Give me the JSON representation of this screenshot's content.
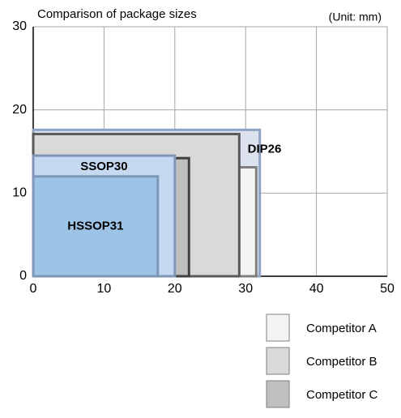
{
  "chart_data": {
    "type": "rectangle",
    "title": "Comparison of package sizes",
    "unit_note": "(Unit: mm)",
    "xlim": [
      0,
      50
    ],
    "xticks": [
      0,
      10,
      20,
      30,
      40,
      50
    ],
    "ylim": [
      0,
      30
    ],
    "yticks": [
      0,
      10,
      20,
      30
    ],
    "grid": true,
    "series": [
      {
        "name": "DIP26",
        "width": 32,
        "height": 17.6,
        "color": "#dde3ee",
        "stroke": "#8ea3c3",
        "label_position": "top-right"
      },
      {
        "name": "Competitor A",
        "width": 31.5,
        "height": 13.1,
        "color": "#f4f4f4",
        "stroke": "#7f7f7f",
        "label_position": "legend"
      },
      {
        "name": "Competitor B",
        "width": 29.1,
        "height": 17.1,
        "color": "#d9d9d9",
        "stroke": "#595959",
        "label_position": "legend"
      },
      {
        "name": "Competitor C",
        "width": 22,
        "height": 14.2,
        "color": "#bfbfbf",
        "stroke": "#404040",
        "label_position": "legend"
      },
      {
        "name": "SSOP30",
        "width": 20,
        "height": 14.5,
        "color": "#c5d9f1",
        "stroke": "#7f96b8",
        "label_position": "top"
      },
      {
        "name": "HSSOP31",
        "width": 17.6,
        "height": 12,
        "color": "#9dc3e6",
        "stroke": "#7f96b8",
        "label_position": "center"
      }
    ]
  }
}
